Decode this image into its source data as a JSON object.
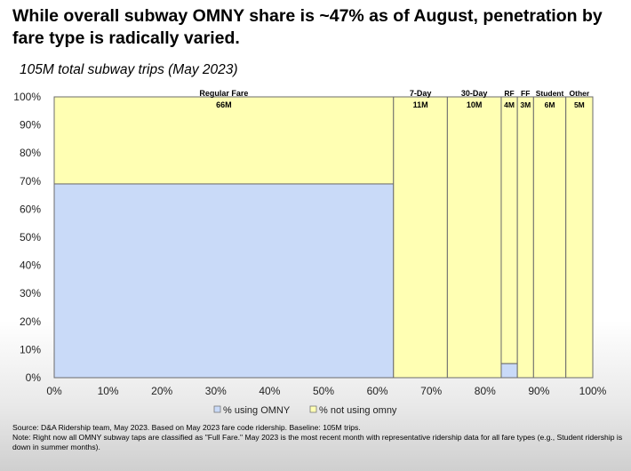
{
  "title": "While overall subway OMNY share is ~47% as of August, penetration by fare type is radically varied.",
  "subtitle": "105M total subway trips (May 2023)",
  "footnote": {
    "source": "Source: D&A Ridership team, May 2023. Based on May 2023 fare code ridership. Baseline: 105M trips.",
    "note": "Note: Right now all OMNY subway taps are classified as \"Full Fare.\" May 2023 is the most recent month with representative ridership data for all fare types (e.g., Student ridership is down in summer months)."
  },
  "chart_data": {
    "type": "marimekko",
    "x_ticks": [
      "0%",
      "10%",
      "20%",
      "30%",
      "40%",
      "50%",
      "60%",
      "70%",
      "80%",
      "90%",
      "100%"
    ],
    "y_ticks": [
      "0%",
      "10%",
      "20%",
      "30%",
      "40%",
      "50%",
      "60%",
      "70%",
      "80%",
      "90%",
      "100%"
    ],
    "xlim": [
      0,
      100
    ],
    "ylim": [
      0,
      100
    ],
    "colors": {
      "omny": "#c9daf8",
      "not_omny": "#ffffb3",
      "border": "#6b6b6b"
    },
    "legend": {
      "position": "bottom",
      "items": [
        {
          "key": "omny",
          "label": "% using OMNY"
        },
        {
          "key": "not_omny",
          "label": "% not using omny"
        }
      ]
    },
    "categories": [
      {
        "name": "Regular Fare",
        "value_label": "66M",
        "width_pct": 63,
        "omny_pct": 69
      },
      {
        "name": "7-Day",
        "value_label": "11M",
        "width_pct": 10,
        "omny_pct": 0
      },
      {
        "name": "30-Day",
        "value_label": "10M",
        "width_pct": 10,
        "omny_pct": 0
      },
      {
        "name": "RF",
        "value_label": "4M",
        "width_pct": 3,
        "omny_pct": 5
      },
      {
        "name": "FF",
        "value_label": "3M",
        "width_pct": 3,
        "omny_pct": 0
      },
      {
        "name": "Student",
        "value_label": "6M",
        "width_pct": 6,
        "omny_pct": 0
      },
      {
        "name": "Other",
        "value_label": "5M",
        "width_pct": 5,
        "omny_pct": 0
      }
    ]
  }
}
